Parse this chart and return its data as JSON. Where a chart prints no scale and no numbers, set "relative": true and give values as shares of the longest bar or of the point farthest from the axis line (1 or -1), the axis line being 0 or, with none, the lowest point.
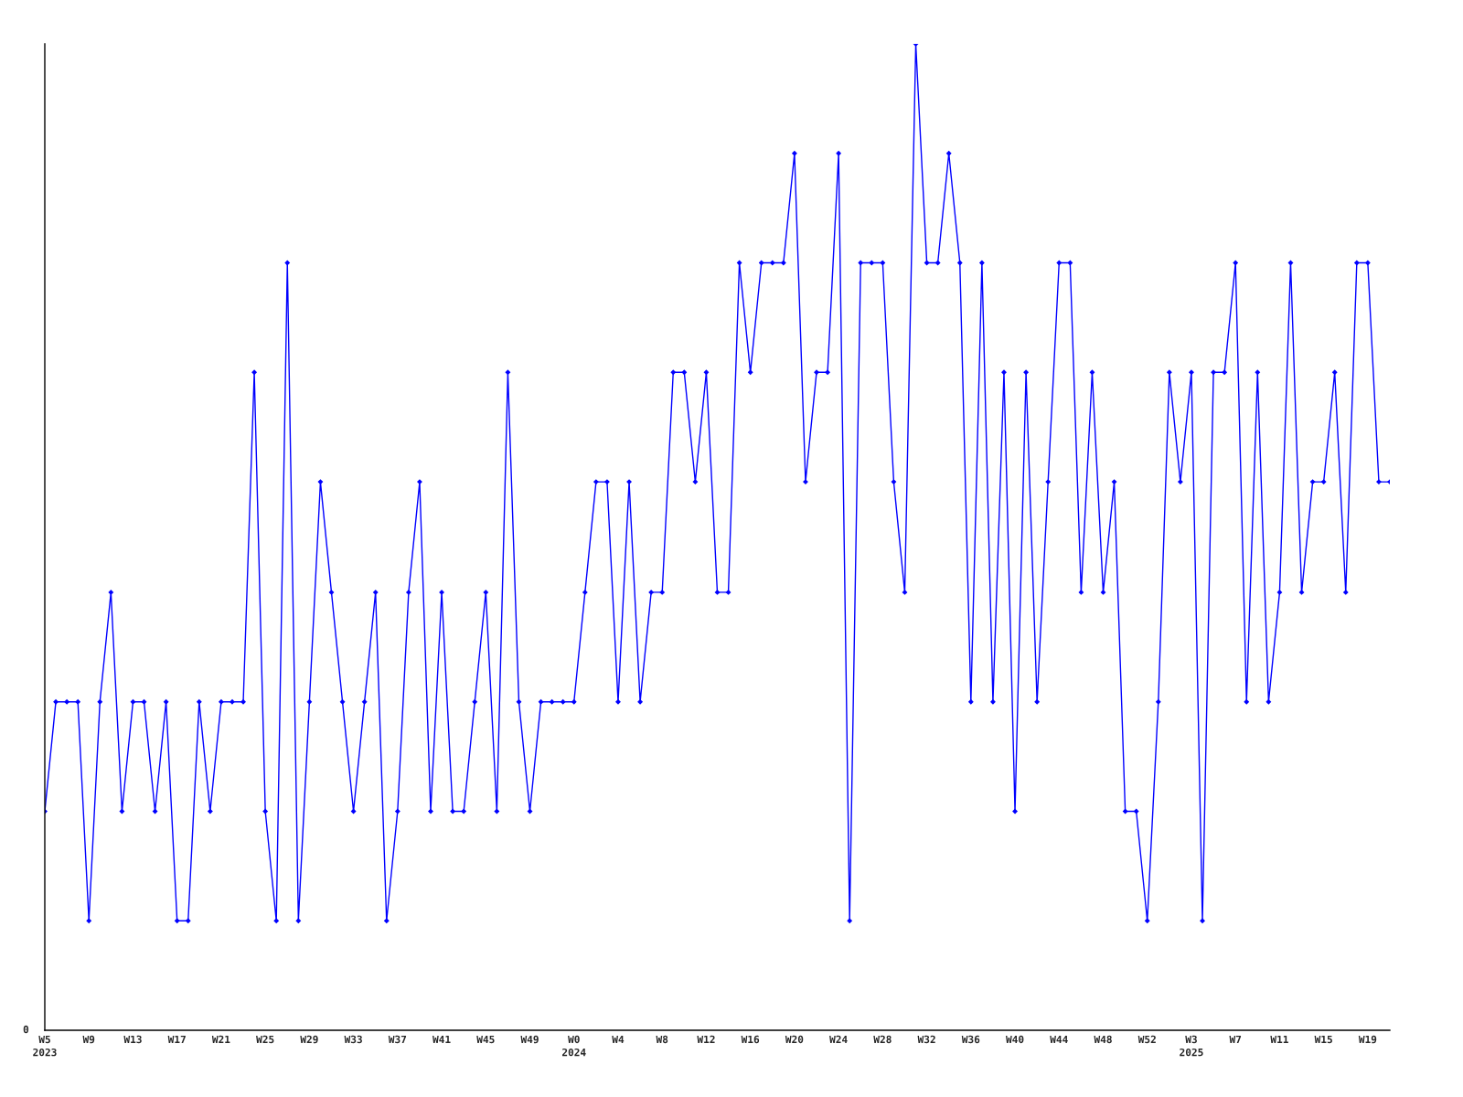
{
  "chart_data": {
    "type": "line",
    "relative": true,
    "marker": "diamond",
    "line_style": "solid",
    "grid": false,
    "annotations": [
      "0"
    ],
    "categories": [
      "W5\n2023",
      null,
      null,
      null,
      "W9",
      null,
      null,
      null,
      "W13",
      null,
      null,
      null,
      "W17",
      null,
      null,
      null,
      "W21",
      null,
      null,
      null,
      "W25",
      null,
      null,
      null,
      "W29",
      null,
      null,
      null,
      "W33",
      null,
      null,
      null,
      "W37",
      null,
      null,
      null,
      "W41",
      null,
      null,
      null,
      "W45",
      null,
      null,
      null,
      "W49",
      null,
      null,
      null,
      "W0\n2024",
      null,
      null,
      null,
      "W4",
      null,
      null,
      null,
      "W8",
      null,
      null,
      null,
      "W12",
      null,
      null,
      null,
      "W16",
      null,
      null,
      null,
      "W20",
      null,
      null,
      null,
      "W24",
      null,
      null,
      null,
      "W28",
      null,
      null,
      null,
      "W32",
      null,
      null,
      null,
      "W36",
      null,
      null,
      null,
      "W40",
      null,
      null,
      null,
      "W44",
      null,
      null,
      null,
      "W48",
      null,
      null,
      null,
      "W52",
      null,
      null,
      null,
      "W3\n2025",
      null,
      null,
      null,
      "W7",
      null,
      null,
      null,
      "W11",
      null,
      null,
      null,
      "W15",
      null,
      null,
      null,
      "W19",
      null,
      null
    ],
    "series": [
      {
        "color": "#0000ff",
        "values": [
          0.222,
          0.333,
          0.333,
          0.333,
          0.111,
          0.333,
          0.444,
          0.222,
          0.333,
          0.333,
          0.222,
          0.333,
          0.111,
          0.111,
          0.333,
          0.222,
          0.333,
          0.333,
          0.333,
          0.667,
          0.222,
          0.111,
          0.778,
          0.111,
          0.333,
          0.556,
          0.444,
          0.333,
          0.222,
          0.333,
          0.444,
          0.111,
          0.222,
          0.444,
          0.556,
          0.222,
          0.444,
          0.222,
          0.222,
          0.333,
          0.444,
          0.222,
          0.667,
          0.333,
          0.222,
          0.333,
          0.333,
          0.333,
          0.333,
          0.444,
          0.556,
          0.556,
          0.333,
          0.556,
          0.333,
          0.444,
          0.444,
          0.667,
          0.667,
          0.556,
          0.667,
          0.444,
          0.444,
          0.778,
          0.667,
          0.778,
          0.778,
          0.778,
          0.889,
          0.556,
          0.667,
          0.667,
          0.889,
          0.111,
          0.778,
          0.778,
          0.778,
          0.556,
          0.444,
          1,
          0.778,
          0.778,
          0.889,
          0.778,
          0.333,
          0.778,
          0.333,
          0.667,
          0.222,
          0.667,
          0.333,
          0.556,
          0.778,
          0.778,
          0.444,
          0.667,
          0.444,
          0.556,
          0.222,
          0.222,
          0.111,
          0.333,
          0.667,
          0.556,
          0.667,
          0.111,
          0.667,
          0.667,
          0.778,
          0.333,
          0.667,
          0.333,
          0.444,
          0.778,
          0.444,
          0.556,
          0.556,
          0.667,
          0.444,
          0.778,
          0.778,
          0.556,
          0.556
        ]
      }
    ]
  }
}
